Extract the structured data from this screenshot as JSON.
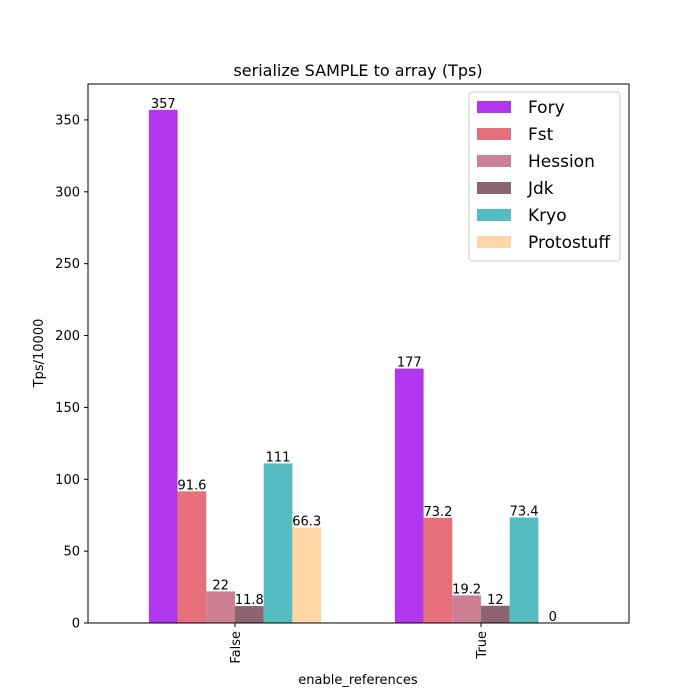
{
  "chart_data": {
    "type": "bar",
    "title": "serialize SAMPLE to array (Tps)",
    "xlabel": "enable_references",
    "ylabel": "Tps/10000",
    "categories": [
      "False",
      "True"
    ],
    "ylim": [
      0,
      375
    ],
    "yticks": [
      0,
      50,
      100,
      150,
      200,
      250,
      300,
      350
    ],
    "legend_position": "top-right",
    "series": [
      {
        "name": "Fory",
        "color": "#b236ed",
        "values": [
          357,
          177
        ],
        "labels": [
          "357",
          "177"
        ]
      },
      {
        "name": "Fst",
        "color": "#e76f7b",
        "values": [
          91.6,
          73.2
        ],
        "labels": [
          "91.6",
          "73.2"
        ]
      },
      {
        "name": "Hession",
        "color": "#cd7f94",
        "values": [
          22,
          19.2
        ],
        "labels": [
          "22",
          "19.2"
        ]
      },
      {
        "name": "Jdk",
        "color": "#8d6571",
        "values": [
          11.8,
          12
        ],
        "labels": [
          "11.8",
          "12"
        ]
      },
      {
        "name": "Kryo",
        "color": "#55bcc2",
        "values": [
          111,
          73.4
        ],
        "labels": [
          "111",
          "73.4"
        ]
      },
      {
        "name": "Protostuff",
        "color": "#ffd6a5",
        "values": [
          66.3,
          0
        ],
        "labels": [
          "66.3",
          "0"
        ]
      }
    ]
  }
}
